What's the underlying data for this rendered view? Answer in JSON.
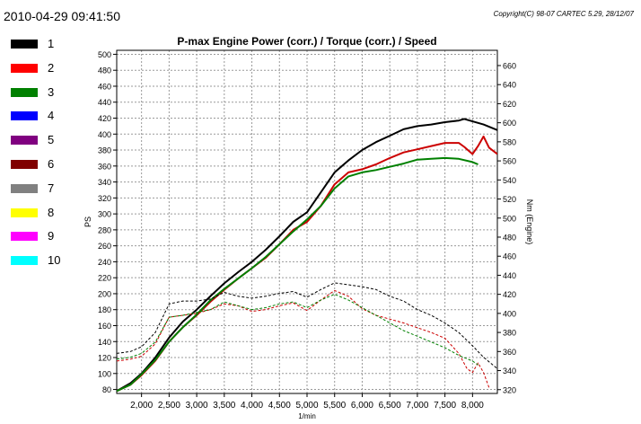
{
  "header": {
    "timestamp": "2010-04-29 09:41:50",
    "copyright": "Copyright(C) 98-07 CARTEC 5.29, 28/12/07"
  },
  "legend": {
    "items": [
      {
        "label": "1",
        "color": "#000000"
      },
      {
        "label": "2",
        "color": "#ff0000"
      },
      {
        "label": "3",
        "color": "#008000"
      },
      {
        "label": "4",
        "color": "#0000ff"
      },
      {
        "label": "5",
        "color": "#800080"
      },
      {
        "label": "6",
        "color": "#800000"
      },
      {
        "label": "7",
        "color": "#808080"
      },
      {
        "label": "8",
        "color": "#ffff00"
      },
      {
        "label": "9",
        "color": "#ff00ff"
      },
      {
        "label": "10",
        "color": "#00ffff"
      }
    ]
  },
  "chart_data": {
    "type": "line",
    "title": "P-max Engine Power (corr.) / Torque (corr.) / Speed",
    "xlabel": "1/min",
    "ylabel": "PS",
    "y2label": "Nm (Engine)",
    "xlim": [
      1550,
      8450
    ],
    "ylim": [
      75,
      505
    ],
    "y2lim": [
      316,
      676
    ],
    "xticks": [
      2000,
      2500,
      3000,
      3500,
      4000,
      4500,
      5000,
      5500,
      6000,
      6500,
      7000,
      7500,
      8000
    ],
    "xtick_labels": [
      "2,000",
      "2,500",
      "3,000",
      "3,500",
      "4,000",
      "4,500",
      "5,000",
      "5,500",
      "6,000",
      "6,500",
      "7,000",
      "7,500",
      "8,000"
    ],
    "yticks": [
      80,
      100,
      120,
      140,
      160,
      180,
      200,
      220,
      240,
      260,
      280,
      300,
      320,
      340,
      360,
      380,
      400,
      420,
      440,
      460,
      480,
      500
    ],
    "y2ticks": [
      320,
      340,
      360,
      380,
      400,
      420,
      440,
      460,
      480,
      500,
      520,
      540,
      560,
      580,
      600,
      620,
      640,
      660
    ],
    "grid": true,
    "series": [
      {
        "name": "1",
        "kind": "power",
        "axis": "left",
        "color": "#000000",
        "width": 2,
        "dash": "",
        "x": [
          1550,
          1800,
          2000,
          2250,
          2500,
          2750,
          3000,
          3250,
          3500,
          3750,
          4000,
          4250,
          4500,
          4750,
          5000,
          5250,
          5500,
          5750,
          6000,
          6250,
          6500,
          6750,
          7000,
          7250,
          7500,
          7750,
          7850,
          8000,
          8200,
          8450
        ],
        "y": [
          78,
          88,
          100,
          120,
          145,
          165,
          180,
          197,
          213,
          227,
          240,
          255,
          272,
          290,
          302,
          327,
          352,
          367,
          380,
          390,
          398,
          406,
          410,
          412,
          415,
          417,
          419,
          416,
          412,
          405
        ]
      },
      {
        "name": "2",
        "kind": "power",
        "axis": "left",
        "color": "#cc0000",
        "width": 2,
        "dash": "",
        "x": [
          1550,
          1800,
          2000,
          2250,
          2500,
          2750,
          3000,
          3250,
          3500,
          3750,
          4000,
          4250,
          4500,
          4750,
          5000,
          5250,
          5500,
          5750,
          6000,
          6250,
          6500,
          6750,
          7000,
          7250,
          7500,
          7750,
          7850,
          8000,
          8100,
          8200,
          8300,
          8450
        ],
        "y": [
          78,
          86,
          98,
          116,
          140,
          158,
          173,
          190,
          205,
          219,
          232,
          245,
          262,
          280,
          290,
          310,
          337,
          352,
          356,
          362,
          370,
          377,
          381,
          385,
          389,
          389,
          384,
          375,
          385,
          397,
          383,
          375
        ]
      },
      {
        "name": "3",
        "kind": "power",
        "axis": "left",
        "color": "#008000",
        "width": 2,
        "dash": "",
        "x": [
          1550,
          1800,
          2000,
          2250,
          2500,
          2750,
          3000,
          3250,
          3500,
          3750,
          4000,
          4250,
          4500,
          4750,
          5000,
          5250,
          5500,
          5750,
          6000,
          6250,
          6500,
          6750,
          7000,
          7250,
          7500,
          7750,
          8000,
          8100
        ],
        "y": [
          78,
          86,
          99,
          117,
          140,
          158,
          174,
          192,
          206,
          219,
          232,
          246,
          262,
          278,
          293,
          310,
          332,
          347,
          352,
          355,
          359,
          363,
          368,
          369,
          370,
          369,
          365,
          362
        ]
      },
      {
        "name": "1",
        "kind": "torque",
        "axis": "right",
        "color": "#000000",
        "width": 1,
        "dash": "3,2",
        "x": [
          1550,
          1800,
          2000,
          2250,
          2500,
          2750,
          3000,
          3250,
          3500,
          3750,
          4000,
          4250,
          4500,
          4750,
          5000,
          5250,
          5500,
          5750,
          6000,
          6250,
          6500,
          6750,
          7000,
          7250,
          7500,
          7750,
          8000,
          8200,
          8450
        ],
        "y": [
          358,
          360,
          365,
          380,
          410,
          413,
          413,
          415,
          422,
          418,
          416,
          418,
          421,
          423,
          417,
          425,
          432,
          430,
          428,
          425,
          418,
          413,
          404,
          398,
          390,
          380,
          366,
          354,
          342
        ]
      },
      {
        "name": "2",
        "kind": "torque",
        "axis": "right",
        "color": "#cc0000",
        "width": 1,
        "dash": "3,2",
        "x": [
          1550,
          1800,
          2000,
          2250,
          2500,
          2750,
          3000,
          3250,
          3500,
          3750,
          4000,
          4250,
          4500,
          4750,
          5000,
          5250,
          5500,
          5750,
          6000,
          6250,
          6500,
          6750,
          7000,
          7250,
          7500,
          7750,
          7900,
          8000,
          8100,
          8200,
          8300
        ],
        "y": [
          350,
          352,
          355,
          368,
          396,
          398,
          400,
          404,
          410,
          408,
          402,
          404,
          408,
          411,
          403,
          414,
          424,
          418,
          405,
          398,
          394,
          390,
          385,
          380,
          374,
          358,
          342,
          338,
          348,
          338,
          322
        ]
      },
      {
        "name": "3",
        "kind": "torque",
        "axis": "right",
        "color": "#008000",
        "width": 1,
        "dash": "3,2",
        "x": [
          1550,
          1800,
          2000,
          2250,
          2500,
          2750,
          3000,
          3250,
          3500,
          3750,
          4000,
          4250,
          4500,
          4750,
          5000,
          5250,
          5500,
          5750,
          6000,
          6250,
          6500,
          6750,
          7000,
          7250,
          7500,
          7750,
          8000,
          8100
        ],
        "y": [
          352,
          354,
          358,
          370,
          396,
          398,
          401,
          404,
          412,
          408,
          404,
          406,
          410,
          412,
          406,
          414,
          420,
          414,
          406,
          398,
          390,
          382,
          376,
          370,
          364,
          356,
          350,
          346
        ]
      }
    ]
  }
}
